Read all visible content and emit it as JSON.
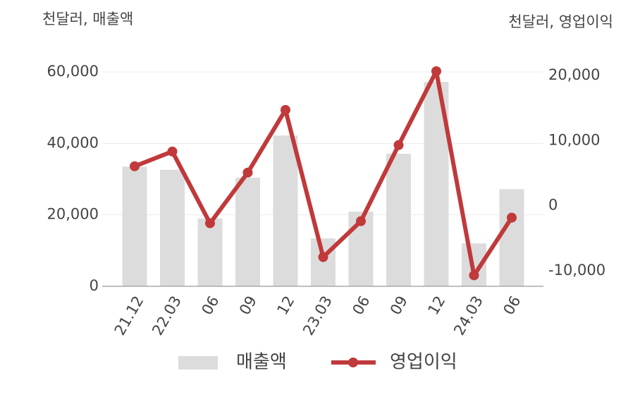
{
  "chart_data": {
    "type": "bar-line",
    "y_unit_label": "천달러, 매출액",
    "y2_unit_label": "천달러, 영업이익",
    "categories": [
      "21.12",
      "22.03",
      "06",
      "09",
      "12",
      "23.03",
      "06",
      "09",
      "12",
      "24.03",
      "06"
    ],
    "series": [
      {
        "name": "매출액",
        "type": "bar",
        "color": "#dcdcdc",
        "values": [
          33500,
          32600,
          19000,
          30400,
          42200,
          13400,
          20900,
          37100,
          57200,
          12000,
          27200
        ]
      },
      {
        "name": "영업이익",
        "type": "line",
        "axis": "y2",
        "color": "#c0393b",
        "values": [
          6050,
          8320,
          -2700,
          5080,
          14700,
          -7890,
          -2380,
          9300,
          20650,
          -10700,
          -1840
        ]
      }
    ],
    "ylim": [
      0,
      60000
    ],
    "yticks": [
      0,
      {
        "value": 20000,
        "label": "20,000"
      },
      {
        "value": 40000,
        "label": "40,000"
      },
      {
        "value": 60000,
        "label": "60,000"
      }
    ],
    "y2lim": [
      -12380,
      20540
    ],
    "y2ticks": [
      {
        "value": -10000,
        "label": "-10,000"
      },
      0,
      {
        "value": 10000,
        "label": "10,000"
      },
      {
        "value": 20000,
        "label": "20,000"
      }
    ],
    "grid": true
  }
}
